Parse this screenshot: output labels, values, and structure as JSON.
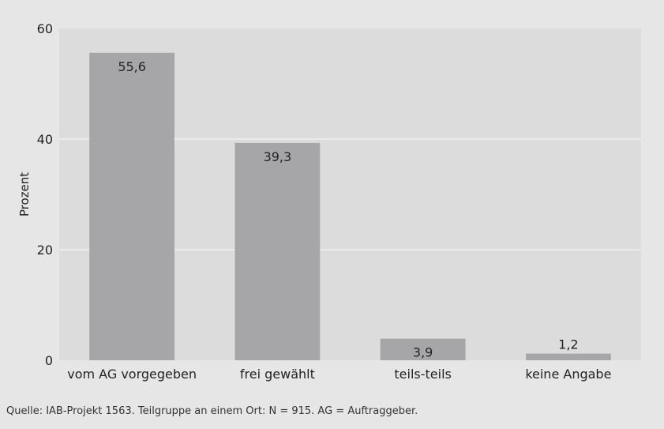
{
  "chart_data": {
    "type": "bar",
    "categories": [
      "vom AG vorgegeben",
      "frei gewählt",
      "teils-teils",
      "keine Angabe"
    ],
    "values": [
      55.6,
      39.3,
      3.9,
      1.2
    ],
    "value_labels": [
      "55,6",
      "39,3",
      "3,9",
      "1,2"
    ],
    "ylabel": "Prozent",
    "ylim": [
      0,
      60
    ],
    "yticks": [
      0,
      20,
      40,
      60
    ],
    "ytick_labels": [
      "0",
      "20",
      "40",
      "60"
    ],
    "grid": true,
    "colors": {
      "bar": "#a6a6a8",
      "plot_background": "#dcdcdc",
      "page_background": "#e6e6e6",
      "grid": "#f7f7f7"
    }
  },
  "source_note": "Quelle: IAB-Projekt 1563. Teilgruppe an einem Ort: N = 915. AG = Auftraggeber."
}
